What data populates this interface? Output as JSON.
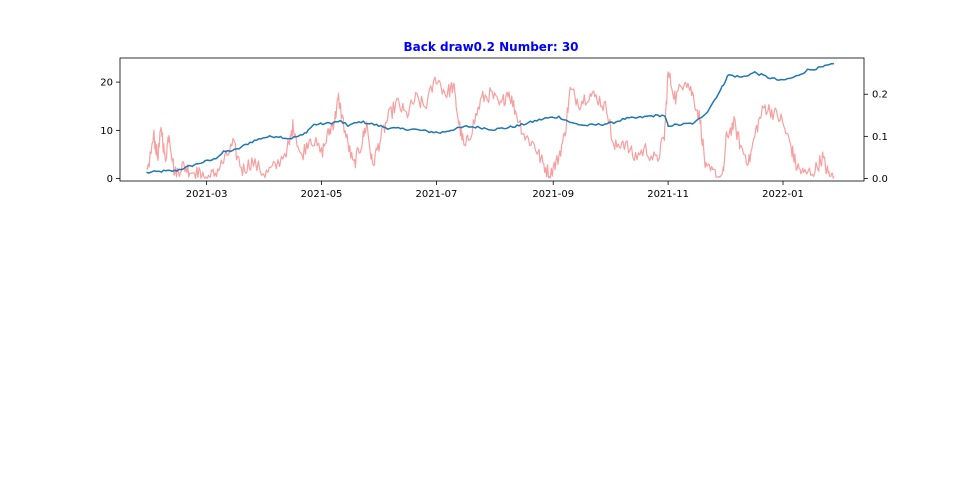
{
  "chart_data": {
    "type": "line",
    "title": "Back draw0.2 Number: 30",
    "title_color": "#0000ff",
    "xlabel": "",
    "ylabel": "",
    "y2label": "",
    "grid": false,
    "legend": "none",
    "x_ticks": [
      "2021-03",
      "2021-05",
      "2021-07",
      "2021-09",
      "2021-11",
      "2022-01"
    ],
    "x_tick_dates": [
      "2021-03-01",
      "2021-05-01",
      "2021-07-01",
      "2021-09-01",
      "2021-11-01",
      "2022-01-01"
    ],
    "x_range": [
      "2021-01-14",
      "2022-02-13"
    ],
    "y_left": {
      "ylim": [
        -0.5,
        25.0
      ],
      "ticks": [
        "0",
        "10",
        "20"
      ],
      "tick_values": [
        0,
        10,
        20
      ]
    },
    "y_right": {
      "ylim": [
        -0.006,
        0.286
      ],
      "ticks": [
        "0.0",
        "0.1",
        "0.2"
      ],
      "tick_values": [
        0.0,
        0.1,
        0.2
      ]
    },
    "series": [
      {
        "axis": "left",
        "color": "#1f77b4",
        "points": [
          [
            "2021-01-28",
            1.2
          ],
          [
            "2021-02-05",
            1.5
          ],
          [
            "2021-02-12",
            1.6
          ],
          [
            "2021-02-19",
            2.4
          ],
          [
            "2021-02-26",
            3.3
          ],
          [
            "2021-03-05",
            4.0
          ],
          [
            "2021-03-10",
            5.5
          ],
          [
            "2021-03-17",
            6.0
          ],
          [
            "2021-03-24",
            7.5
          ],
          [
            "2021-03-31",
            8.5
          ],
          [
            "2021-04-07",
            8.8
          ],
          [
            "2021-04-14",
            8.3
          ],
          [
            "2021-04-21",
            9.0
          ],
          [
            "2021-04-27",
            11.2
          ],
          [
            "2021-05-04",
            11.4
          ],
          [
            "2021-05-11",
            11.9
          ],
          [
            "2021-05-15",
            11.0
          ],
          [
            "2021-05-22",
            11.8
          ],
          [
            "2021-05-29",
            11.2
          ],
          [
            "2021-06-05",
            10.5
          ],
          [
            "2021-06-12",
            10.3
          ],
          [
            "2021-06-19",
            10.2
          ],
          [
            "2021-06-26",
            9.8
          ],
          [
            "2021-07-03",
            9.5
          ],
          [
            "2021-07-10",
            10.2
          ],
          [
            "2021-07-17",
            10.8
          ],
          [
            "2021-07-24",
            10.6
          ],
          [
            "2021-07-31",
            10.2
          ],
          [
            "2021-08-07",
            10.5
          ],
          [
            "2021-08-14",
            11.0
          ],
          [
            "2021-08-21",
            11.8
          ],
          [
            "2021-08-28",
            12.5
          ],
          [
            "2021-09-04",
            12.8
          ],
          [
            "2021-09-11",
            11.5
          ],
          [
            "2021-09-18",
            11.0
          ],
          [
            "2021-09-25",
            11.2
          ],
          [
            "2021-10-02",
            11.5
          ],
          [
            "2021-10-09",
            12.4
          ],
          [
            "2021-10-16",
            12.6
          ],
          [
            "2021-10-23",
            13.0
          ],
          [
            "2021-10-30",
            13.1
          ],
          [
            "2021-11-01",
            11.0
          ],
          [
            "2021-11-08",
            11.2
          ],
          [
            "2021-11-15",
            11.5
          ],
          [
            "2021-11-22",
            14.0
          ],
          [
            "2021-11-29",
            18.5
          ],
          [
            "2021-12-03",
            21.5
          ],
          [
            "2021-12-10",
            21.0
          ],
          [
            "2021-12-17",
            22.0
          ],
          [
            "2021-12-24",
            21.0
          ],
          [
            "2021-12-31",
            20.3
          ],
          [
            "2022-01-07",
            21.0
          ],
          [
            "2022-01-14",
            22.5
          ],
          [
            "2022-01-21",
            23.0
          ],
          [
            "2022-01-28",
            23.8
          ]
        ]
      },
      {
        "axis": "right",
        "color": "#f8a0a0",
        "points": [
          [
            "2021-01-28",
            0.005
          ],
          [
            "2021-02-01",
            0.1
          ],
          [
            "2021-02-03",
            0.05
          ],
          [
            "2021-02-05",
            0.12
          ],
          [
            "2021-02-07",
            0.04
          ],
          [
            "2021-02-09",
            0.11
          ],
          [
            "2021-02-12",
            0.01
          ],
          [
            "2021-02-16",
            0.03
          ],
          [
            "2021-02-20",
            0.02
          ],
          [
            "2021-02-25",
            0.01
          ],
          [
            "2021-03-01",
            0.0
          ],
          [
            "2021-03-05",
            0.01
          ],
          [
            "2021-03-10",
            0.04
          ],
          [
            "2021-03-15",
            0.08
          ],
          [
            "2021-03-20",
            0.02
          ],
          [
            "2021-03-25",
            0.04
          ],
          [
            "2021-04-01",
            0.01
          ],
          [
            "2021-04-07",
            0.03
          ],
          [
            "2021-04-14",
            0.08
          ],
          [
            "2021-04-16",
            0.13
          ],
          [
            "2021-04-20",
            0.05
          ],
          [
            "2021-04-25",
            0.1
          ],
          [
            "2021-05-01",
            0.06
          ],
          [
            "2021-05-05",
            0.11
          ],
          [
            "2021-05-08",
            0.14
          ],
          [
            "2021-05-10",
            0.19
          ],
          [
            "2021-05-14",
            0.1
          ],
          [
            "2021-05-18",
            0.03
          ],
          [
            "2021-05-22",
            0.08
          ],
          [
            "2021-05-25",
            0.13
          ],
          [
            "2021-05-28",
            0.03
          ],
          [
            "2021-06-01",
            0.09
          ],
          [
            "2021-06-05",
            0.14
          ],
          [
            "2021-06-10",
            0.18
          ],
          [
            "2021-06-15",
            0.15
          ],
          [
            "2021-06-20",
            0.19
          ],
          [
            "2021-06-25",
            0.17
          ],
          [
            "2021-07-01",
            0.24
          ],
          [
            "2021-07-06",
            0.2
          ],
          [
            "2021-07-10",
            0.22
          ],
          [
            "2021-07-13",
            0.13
          ],
          [
            "2021-07-16",
            0.07
          ],
          [
            "2021-07-20",
            0.12
          ],
          [
            "2021-07-25",
            0.19
          ],
          [
            "2021-07-30",
            0.2
          ],
          [
            "2021-08-04",
            0.17
          ],
          [
            "2021-08-08",
            0.21
          ],
          [
            "2021-08-12",
            0.16
          ],
          [
            "2021-08-17",
            0.1
          ],
          [
            "2021-08-22",
            0.08
          ],
          [
            "2021-08-26",
            0.04
          ],
          [
            "2021-08-30",
            0.01
          ],
          [
            "2021-09-03",
            0.04
          ],
          [
            "2021-09-07",
            0.1
          ],
          [
            "2021-09-10",
            0.21
          ],
          [
            "2021-09-15",
            0.18
          ],
          [
            "2021-09-20",
            0.2
          ],
          [
            "2021-09-25",
            0.19
          ],
          [
            "2021-09-30",
            0.16
          ],
          [
            "2021-10-03",
            0.07
          ],
          [
            "2021-10-08",
            0.09
          ],
          [
            "2021-10-14",
            0.05
          ],
          [
            "2021-10-20",
            0.07
          ],
          [
            "2021-10-26",
            0.04
          ],
          [
            "2021-10-30",
            0.1
          ],
          [
            "2021-11-01",
            0.25
          ],
          [
            "2021-11-05",
            0.19
          ],
          [
            "2021-11-10",
            0.24
          ],
          [
            "2021-11-14",
            0.2
          ],
          [
            "2021-11-18",
            0.14
          ],
          [
            "2021-11-21",
            0.02
          ],
          [
            "2021-11-26",
            0.01
          ],
          [
            "2021-11-30",
            0.0
          ],
          [
            "2021-12-02",
            0.1
          ],
          [
            "2021-12-06",
            0.13
          ],
          [
            "2021-12-10",
            0.07
          ],
          [
            "2021-12-14",
            0.04
          ],
          [
            "2021-12-18",
            0.12
          ],
          [
            "2021-12-22",
            0.17
          ],
          [
            "2021-12-26",
            0.16
          ],
          [
            "2021-12-31",
            0.14
          ],
          [
            "2022-01-05",
            0.08
          ],
          [
            "2022-01-08",
            0.03
          ],
          [
            "2022-01-12",
            0.01
          ],
          [
            "2022-01-18",
            0.02
          ],
          [
            "2022-01-22",
            0.05
          ],
          [
            "2022-01-25",
            0.01
          ],
          [
            "2022-01-28",
            0.005
          ]
        ]
      }
    ]
  }
}
